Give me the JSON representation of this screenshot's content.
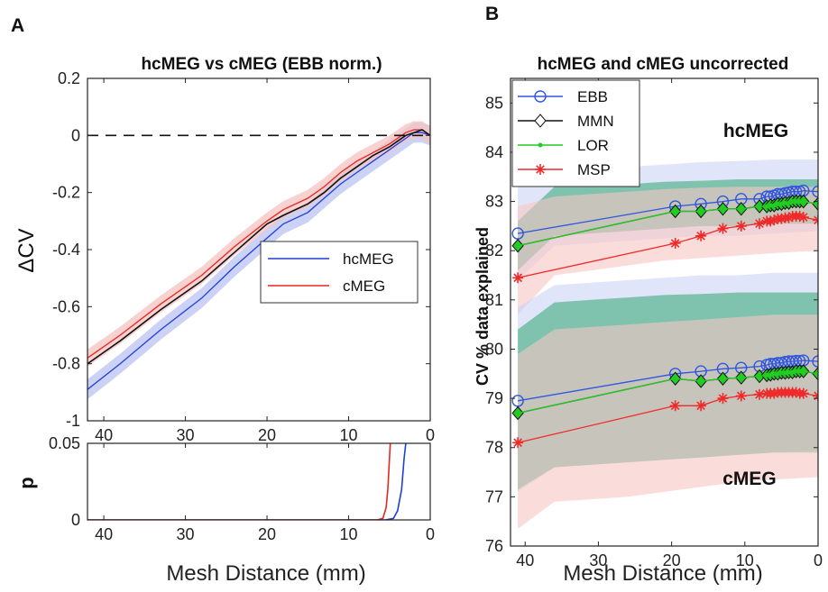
{
  "figure": {
    "panel_a": "A",
    "panel_b": "B"
  },
  "chart_data": [
    {
      "id": "A-top",
      "type": "line",
      "title": "hcMEG vs cMEG (EBB norm.)",
      "xlabel": "",
      "ylabel": "ΔCV",
      "xlim": [
        42,
        0
      ],
      "ylim": [
        -1,
        0.2
      ],
      "xticks": [
        "40",
        "30",
        "20",
        "10",
        "0"
      ],
      "yticks": [
        "0.2",
        "0",
        "-0.2",
        "-0.4",
        "-0.6",
        "-0.8",
        "-1"
      ],
      "reference_line": {
        "y": 0,
        "style": "dashed"
      },
      "legend": {
        "position": "center-right",
        "entries": [
          "hcMEG",
          "cMEG"
        ]
      },
      "series": [
        {
          "name": "hcMEG",
          "color": "#1f3fd6",
          "band": "#b9c3f2",
          "x": [
            42,
            38,
            33,
            28,
            24,
            20,
            18,
            15,
            13,
            11,
            9,
            7,
            5,
            4,
            3,
            2,
            1,
            0
          ],
          "y": [
            -0.89,
            -0.8,
            -0.68,
            -0.57,
            -0.46,
            -0.36,
            -0.31,
            -0.27,
            -0.22,
            -0.17,
            -0.13,
            -0.09,
            -0.05,
            -0.03,
            -0.01,
            0.01,
            0.01,
            0.0
          ]
        },
        {
          "name": "cMEG",
          "color": "#e8261f",
          "band": "#f6c3c0",
          "x": [
            42,
            38,
            33,
            28,
            24,
            20,
            18,
            15,
            13,
            11,
            9,
            7,
            5,
            4,
            3,
            2,
            1,
            0
          ],
          "y": [
            -0.78,
            -0.7,
            -0.59,
            -0.49,
            -0.39,
            -0.3,
            -0.26,
            -0.22,
            -0.18,
            -0.13,
            -0.09,
            -0.06,
            -0.03,
            -0.01,
            0.01,
            0.02,
            0.02,
            0.0
          ]
        }
      ],
      "mean_line": {
        "color": "#111111",
        "x": [
          42,
          38,
          33,
          28,
          24,
          20,
          18,
          15,
          13,
          11,
          9,
          7,
          5,
          4,
          3,
          2,
          1,
          0
        ],
        "y": [
          -0.8,
          -0.72,
          -0.61,
          -0.51,
          -0.41,
          -0.31,
          -0.28,
          -0.24,
          -0.2,
          -0.15,
          -0.11,
          -0.07,
          -0.04,
          -0.02,
          0.0,
          0.01,
          0.02,
          0.0
        ]
      }
    },
    {
      "id": "A-bottom",
      "type": "line",
      "title": "",
      "xlabel": "Mesh Distance (mm)",
      "ylabel": "p",
      "xlim": [
        42,
        0
      ],
      "ylim": [
        0,
        0.05
      ],
      "xticks": [
        "40",
        "30",
        "20",
        "10",
        "0"
      ],
      "yticks": [
        "0.05",
        "0"
      ],
      "series": [
        {
          "name": "hcMEG",
          "color": "#1f3fd6",
          "x": [
            42,
            5.5,
            4.5,
            4.0,
            3.5,
            3.2,
            3.0
          ],
          "y": [
            0,
            0,
            0.001,
            0.006,
            0.02,
            0.04,
            0.05
          ]
        },
        {
          "name": "cMEG",
          "color": "#e8261f",
          "x": [
            42,
            6.5,
            5.8,
            5.4,
            5.2,
            5.0,
            4.9
          ],
          "y": [
            0,
            0,
            0.001,
            0.008,
            0.02,
            0.04,
            0.05
          ]
        }
      ]
    },
    {
      "id": "B",
      "type": "line",
      "title": "hcMEG and cMEG uncorrected",
      "xlabel": "Mesh Distance (mm)",
      "ylabel": "CV % data explained",
      "xlim": [
        42,
        0
      ],
      "ylim": [
        76,
        85.5
      ],
      "xticks": [
        "40",
        "30",
        "20",
        "10",
        "0"
      ],
      "yticks": [
        "85",
        "84",
        "83",
        "82",
        "81",
        "80",
        "79",
        "78",
        "77",
        "76"
      ],
      "legend": {
        "position": "top-left",
        "entries": [
          "EBB",
          "MMN",
          "LOR",
          "MSP"
        ]
      },
      "annotations": [
        "hcMEG",
        "cMEG"
      ],
      "x": [
        41,
        19.5,
        16,
        13,
        10.5,
        8,
        7,
        6.5,
        6,
        5.5,
        5,
        4.5,
        4,
        3.5,
        3,
        2.5,
        2,
        0
      ],
      "series": [
        {
          "name": "EBB",
          "group": "hcMEG",
          "color": "#2f55e0",
          "marker": "circle",
          "values": [
            82.35,
            82.9,
            82.95,
            83.0,
            83.05,
            83.05,
            83.1,
            83.1,
            83.12,
            83.15,
            83.15,
            83.17,
            83.18,
            83.2,
            83.2,
            83.2,
            83.22,
            83.2
          ]
        },
        {
          "name": "MMN",
          "group": "hcMEG",
          "color": "#111111",
          "marker": "diamond",
          "values": [
            82.1,
            82.8,
            82.8,
            82.85,
            82.85,
            82.9,
            82.9,
            82.92,
            82.92,
            82.95,
            82.95,
            82.97,
            82.97,
            83.0,
            83.0,
            83.0,
            83.0,
            82.95
          ]
        },
        {
          "name": "LOR",
          "group": "hcMEG",
          "color": "#22cc22",
          "marker": "dot",
          "values": [
            82.1,
            82.8,
            82.8,
            82.85,
            82.85,
            82.9,
            82.9,
            82.92,
            82.92,
            82.95,
            82.95,
            82.97,
            82.97,
            83.0,
            83.0,
            83.0,
            83.0,
            82.95
          ]
        },
        {
          "name": "MSP",
          "group": "hcMEG",
          "color": "#ee2a2a",
          "marker": "star",
          "values": [
            81.45,
            82.15,
            82.3,
            82.45,
            82.5,
            82.55,
            82.6,
            82.6,
            82.62,
            82.65,
            82.65,
            82.67,
            82.67,
            82.7,
            82.7,
            82.7,
            82.68,
            82.62
          ]
        },
        {
          "name": "EBB",
          "group": "cMEG",
          "color": "#2f55e0",
          "marker": "circle",
          "values": [
            78.95,
            79.5,
            79.55,
            79.6,
            79.62,
            79.65,
            79.68,
            79.7,
            79.7,
            79.72,
            79.72,
            79.74,
            79.75,
            79.75,
            79.76,
            79.76,
            79.77,
            79.75
          ]
        },
        {
          "name": "MMN",
          "group": "cMEG",
          "color": "#111111",
          "marker": "diamond",
          "values": [
            78.7,
            79.4,
            79.35,
            79.4,
            79.42,
            79.45,
            79.47,
            79.48,
            79.5,
            79.5,
            79.52,
            79.52,
            79.53,
            79.53,
            79.55,
            79.55,
            79.55,
            79.5
          ]
        },
        {
          "name": "LOR",
          "group": "cMEG",
          "color": "#22cc22",
          "marker": "dot",
          "values": [
            78.7,
            79.4,
            79.35,
            79.4,
            79.42,
            79.45,
            79.47,
            79.48,
            79.5,
            79.5,
            79.52,
            79.52,
            79.53,
            79.53,
            79.55,
            79.55,
            79.55,
            79.5
          ]
        },
        {
          "name": "MSP",
          "group": "cMEG",
          "color": "#ee2a2a",
          "marker": "star",
          "values": [
            78.1,
            78.85,
            78.85,
            79.0,
            79.05,
            79.08,
            79.1,
            79.1,
            79.1,
            79.12,
            79.12,
            79.12,
            79.12,
            79.12,
            79.12,
            79.1,
            79.1,
            79.05
          ]
        }
      ],
      "bands": [
        {
          "group": "hcMEG",
          "color": "#ccd4f5",
          "lower": [
            81.4,
            82.1,
            82.15,
            82.2,
            82.25,
            82.3,
            82.3,
            82.35,
            82.4
          ],
          "upper": [
            83.3,
            83.6,
            83.65,
            83.7,
            83.75,
            83.8,
            83.82,
            83.85,
            83.85
          ]
        },
        {
          "group": "hcMEG",
          "color": "#2fa872",
          "lower": [
            81.6,
            82.3,
            82.35,
            82.4,
            82.45,
            82.5,
            82.5,
            82.55,
            82.55
          ],
          "upper": [
            82.6,
            83.3,
            83.32,
            83.35,
            83.4,
            83.42,
            83.45,
            83.45,
            83.45
          ]
        },
        {
          "group": "hcMEG",
          "color": "#f7c6c3",
          "lower": [
            80.7,
            81.5,
            81.6,
            81.7,
            81.8,
            81.85,
            81.9,
            81.95,
            82.0
          ],
          "upper": [
            82.9,
            83.1,
            83.15,
            83.2,
            83.25,
            83.28,
            83.3,
            83.3,
            83.3
          ]
        },
        {
          "group": "cMEG",
          "color": "#ccd4f5",
          "lower": [
            77.1,
            77.6,
            77.65,
            77.7,
            77.75,
            77.8,
            77.85,
            77.9,
            77.95
          ],
          "upper": [
            80.85,
            81.3,
            81.35,
            81.4,
            81.45,
            81.5,
            81.5,
            81.55,
            81.55
          ]
        },
        {
          "group": "cMEG",
          "color": "#2fa872",
          "lower": [
            77.15,
            77.6,
            77.65,
            77.7,
            77.75,
            77.8,
            77.85,
            77.9,
            77.9
          ],
          "upper": [
            80.4,
            80.95,
            81.0,
            81.05,
            81.1,
            81.12,
            81.15,
            81.15,
            81.15
          ]
        },
        {
          "group": "cMEG",
          "color": "#f7c6c3",
          "lower": [
            76.35,
            76.9,
            76.95,
            77.0,
            77.1,
            77.2,
            77.3,
            77.35,
            77.4
          ],
          "upper": [
            79.9,
            80.4,
            80.45,
            80.5,
            80.55,
            80.6,
            80.65,
            80.7,
            80.7
          ]
        }
      ],
      "band_x": [
        41,
        36,
        31,
        26,
        21,
        16,
        11,
        6,
        0
      ]
    }
  ]
}
